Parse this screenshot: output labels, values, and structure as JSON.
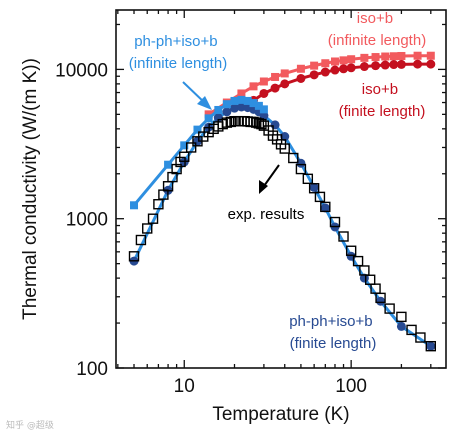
{
  "chart_data": {
    "type": "scatter",
    "xscale": "log",
    "yscale": "log",
    "xlim": [
      3.9,
      370
    ],
    "ylim": [
      100,
      25000
    ],
    "xlabel": "Temperature (K)",
    "ylabel": "Thermal conductivity (W/(m K))",
    "xticks": [
      {
        "value": 10,
        "label": "10"
      },
      {
        "value": 100,
        "label": "100"
      }
    ],
    "yticks": [
      {
        "value": 100,
        "label": "100"
      },
      {
        "value": 1000,
        "label": "1000"
      },
      {
        "value": 10000,
        "label": "10000"
      }
    ],
    "series": [
      {
        "key": "s_ppinf",
        "color": "#2e8fe0",
        "marker": "square",
        "x": [
          5,
          8,
          10,
          12,
          14,
          16,
          18,
          20,
          22,
          24,
          26,
          28,
          30
        ],
        "y": [
          1230,
          2300,
          3100,
          3950,
          4700,
          5350,
          5850,
          6150,
          6250,
          6150,
          5950,
          5700,
          5400
        ]
      },
      {
        "key": "s_isob_inf",
        "color": "#f25a5e",
        "marker": "square",
        "x": [
          14,
          18,
          22,
          26,
          30,
          35,
          40,
          50,
          60,
          70,
          80,
          90,
          100,
          120,
          140,
          160,
          180,
          200,
          250,
          300
        ],
        "y": [
          5000,
          6000,
          6900,
          7700,
          8300,
          8900,
          9400,
          10100,
          10600,
          11000,
          11300,
          11500,
          11700,
          11950,
          12100,
          12200,
          12250,
          12300,
          12350,
          12350
        ]
      },
      {
        "key": "s_isob_fin",
        "color": "#c4101f",
        "marker": "circle",
        "x": [
          26,
          30,
          35,
          40,
          50,
          60,
          70,
          80,
          90,
          100,
          120,
          140,
          160,
          180,
          200,
          250,
          300
        ],
        "y": [
          6200,
          6900,
          7500,
          8000,
          8700,
          9200,
          9600,
          9900,
          10100,
          10250,
          10450,
          10600,
          10700,
          10780,
          10800,
          10850,
          10850
        ]
      },
      {
        "key": "s_ppfin",
        "color": "#274a92",
        "marker": "circle",
        "line_color": "#2e8fe0",
        "x": [
          5,
          8,
          10,
          12,
          14,
          16,
          18,
          20,
          22,
          24,
          26,
          28,
          30,
          35,
          40,
          50,
          60,
          70,
          80,
          100,
          120,
          150,
          200,
          300
        ],
        "y": [
          520,
          1550,
          2400,
          3300,
          4100,
          4750,
          5200,
          5500,
          5600,
          5550,
          5400,
          5200,
          4900,
          4250,
          3550,
          2350,
          1620,
          1180,
          880,
          560,
          400,
          280,
          190,
          140
        ]
      },
      {
        "key": "s_exp",
        "color": "#000000",
        "marker": "open-square",
        "x": [
          5,
          5.5,
          6,
          6.5,
          7,
          7.5,
          8,
          8.5,
          9,
          9.5,
          10,
          11,
          12,
          13,
          14,
          15,
          16,
          17,
          18,
          19,
          20,
          21,
          22,
          23,
          24,
          25,
          26,
          27,
          28,
          29,
          30,
          32,
          34,
          36,
          38,
          40,
          45,
          50,
          55,
          60,
          65,
          70,
          80,
          90,
          100,
          110,
          120,
          130,
          140,
          150,
          170,
          200,
          230,
          260,
          300
        ],
        "y": [
          560,
          720,
          860,
          1000,
          1250,
          1450,
          1650,
          1900,
          2150,
          2400,
          2600,
          3000,
          3300,
          3550,
          3800,
          4000,
          4150,
          4300,
          4400,
          4450,
          4500,
          4500,
          4500,
          4500,
          4480,
          4450,
          4450,
          4400,
          4350,
          4300,
          4200,
          3900,
          3600,
          3400,
          3150,
          2950,
          2550,
          2150,
          1850,
          1600,
          1400,
          1200,
          950,
          760,
          610,
          520,
          450,
          390,
          340,
          295,
          250,
          220,
          180,
          160,
          140
        ]
      }
    ],
    "annotations": [
      {
        "key": "a_ppinf",
        "lines": [
          "ph-ph+iso+b",
          "(infinite length)"
        ],
        "color": "#2e8fe0"
      },
      {
        "key": "a_isob_inf",
        "lines": [
          "iso+b",
          "(infinite length)"
        ],
        "color": "#f25a5e"
      },
      {
        "key": "a_isob_fin",
        "lines": [
          "iso+b",
          "(finite length)"
        ],
        "color": "#c4101f"
      },
      {
        "key": "a_exp",
        "lines": [
          "exp. results"
        ],
        "color": "#000000"
      },
      {
        "key": "a_ppfin",
        "lines": [
          "ph-ph+iso+b",
          "(finite length)"
        ],
        "color": "#274a92"
      }
    ]
  },
  "watermark": "知乎 @超级"
}
